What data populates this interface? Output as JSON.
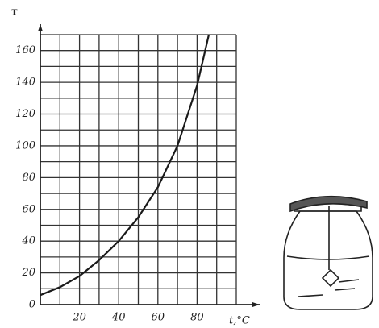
{
  "chart_data": {
    "type": "line",
    "y_label": "т",
    "x_label": "t,°C",
    "x": [
      0,
      10,
      20,
      30,
      40,
      50,
      60,
      70,
      80,
      86
    ],
    "values": [
      6,
      11,
      18,
      28,
      40,
      55,
      74,
      100,
      138,
      170
    ],
    "color": "#1a1a1a",
    "xlim": [
      0,
      100
    ],
    "ylim": [
      0,
      170
    ],
    "xticks": [
      20,
      40,
      60,
      80
    ],
    "yticks": [
      0,
      20,
      40,
      60,
      80,
      100,
      120,
      140,
      160
    ],
    "xgrid": [
      10,
      20,
      30,
      40,
      50,
      60,
      70,
      80,
      90,
      100
    ],
    "ygrid": [
      10,
      20,
      30,
      40,
      50,
      60,
      70,
      80,
      90,
      100,
      110,
      120,
      130,
      140,
      150,
      160,
      170
    ],
    "grid": true
  }
}
